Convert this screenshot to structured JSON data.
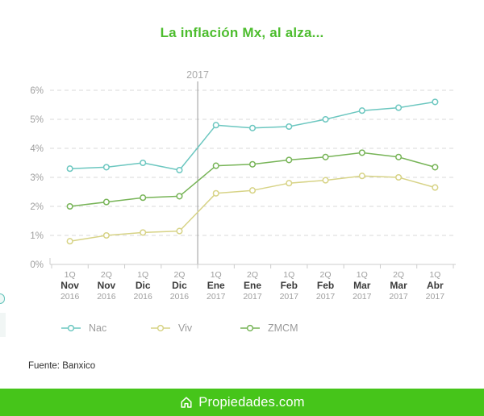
{
  "chart_data": {
    "type": "line",
    "title": "La inflación Mx, al alza...",
    "categories": [
      {
        "q": "1Q",
        "month": "Nov",
        "year": "2016"
      },
      {
        "q": "2Q",
        "month": "Nov",
        "year": "2016"
      },
      {
        "q": "1Q",
        "month": "Dic",
        "year": "2016"
      },
      {
        "q": "2Q",
        "month": "Dic",
        "year": "2016"
      },
      {
        "q": "1Q",
        "month": "Ene",
        "year": "2017"
      },
      {
        "q": "2Q",
        "month": "Ene",
        "year": "2017"
      },
      {
        "q": "1Q",
        "month": "Feb",
        "year": "2017"
      },
      {
        "q": "2Q",
        "month": "Feb",
        "year": "2017"
      },
      {
        "q": "1Q",
        "month": "Mar",
        "year": "2017"
      },
      {
        "q": "2Q",
        "month": "Mar",
        "year": "2017"
      },
      {
        "q": "1Q",
        "month": "Abr",
        "year": "2017"
      }
    ],
    "series": [
      {
        "name": "Nac",
        "color": "#6cc7c0",
        "values": [
          3.3,
          3.35,
          3.5,
          3.25,
          4.8,
          4.7,
          4.75,
          5.0,
          5.3,
          5.4,
          5.6
        ]
      },
      {
        "name": "Viv",
        "color": "#d7d386",
        "values": [
          0.8,
          1.0,
          1.1,
          1.15,
          2.45,
          2.55,
          2.8,
          2.9,
          3.05,
          3.0,
          2.65
        ]
      },
      {
        "name": "ZMCM",
        "color": "#77b457",
        "values": [
          2.0,
          2.15,
          2.3,
          2.35,
          3.4,
          3.45,
          3.6,
          3.7,
          3.85,
          3.7,
          3.35
        ]
      }
    ],
    "ylim": [
      0,
      6
    ],
    "ytick_suffix": "%",
    "grid": "horizontal-dashed",
    "legend_position": "bottom",
    "separator": {
      "label": "2017",
      "after_category_index": 3
    }
  },
  "source": "Fuente: Banxico",
  "footer": {
    "logo_text": "Propiedades.com"
  },
  "colors": {
    "title": "#4dbd2e",
    "footer_bar": "#46c51a",
    "grid": "#d9d9d9",
    "axis_line": "#cccccc",
    "axis_text": "#9e9e9e",
    "month_text": "#3b3b3b",
    "separator": "#a9a9a9"
  }
}
